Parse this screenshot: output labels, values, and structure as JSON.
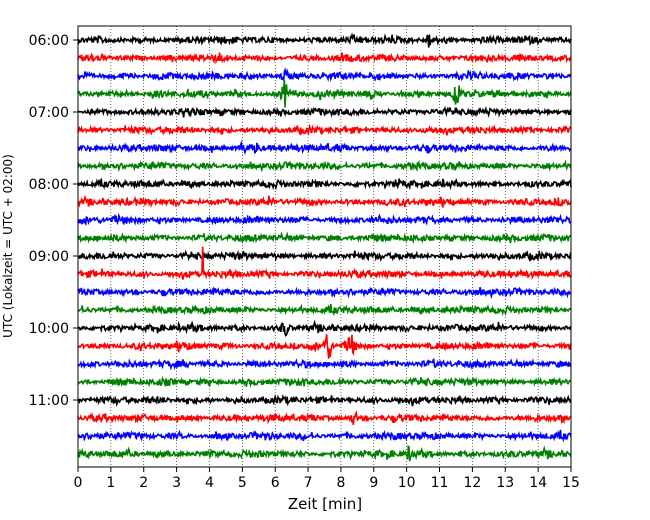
{
  "chart_data": {
    "type": "line",
    "title": "",
    "xlabel": "Zeit  [min]",
    "ylabel": "UTC (Lokalzeit = UTC + 02:00)",
    "xlim": [
      0,
      15
    ],
    "x_ticks": [
      "0",
      "1",
      "2",
      "3",
      "4",
      "5",
      "6",
      "7",
      "8",
      "9",
      "10",
      "11",
      "12",
      "13",
      "14",
      "15"
    ],
    "y_ticks": [
      "06:00",
      "07:00",
      "08:00",
      "09:00",
      "10:00",
      "11:00"
    ],
    "y_tick_trace_index": [
      0,
      4,
      8,
      12,
      16,
      20
    ],
    "grid": "vertical dotted",
    "trace_start_utc": "06:00",
    "trace_interval_min": 15,
    "trace_count": 24,
    "trace_colors": [
      "#000000",
      "#ff0000",
      "#0000ff",
      "#008000"
    ],
    "events": [
      {
        "trace": 0,
        "minute": 10.7,
        "amplitude": 0.9
      },
      {
        "trace": 2,
        "minute": 6.3,
        "amplitude": 0.8
      },
      {
        "trace": 3,
        "minute": 6.3,
        "amplitude": 1.5
      },
      {
        "trace": 3,
        "minute": 11.5,
        "amplitude": 1.2
      },
      {
        "trace": 6,
        "minute": 5.0,
        "amplitude": 0.6
      },
      {
        "trace": 6,
        "minute": 5.4,
        "amplitude": 0.5
      },
      {
        "trace": 13,
        "minute": 3.8,
        "amplitude": 10
      },
      {
        "trace": 16,
        "minute": 6.3,
        "amplitude": 0.8
      },
      {
        "trace": 17,
        "minute": 7.6,
        "amplitude": 1.8
      },
      {
        "trace": 17,
        "minute": 8.3,
        "amplitude": 1.2
      },
      {
        "trace": 21,
        "minute": 8.4,
        "amplitude": 0.6
      },
      {
        "trace": 23,
        "minute": 10.1,
        "amplitude": 0.7
      }
    ],
    "colors": {
      "background": "#ffffff",
      "frame": "#000000",
      "grid": "#000000"
    }
  }
}
